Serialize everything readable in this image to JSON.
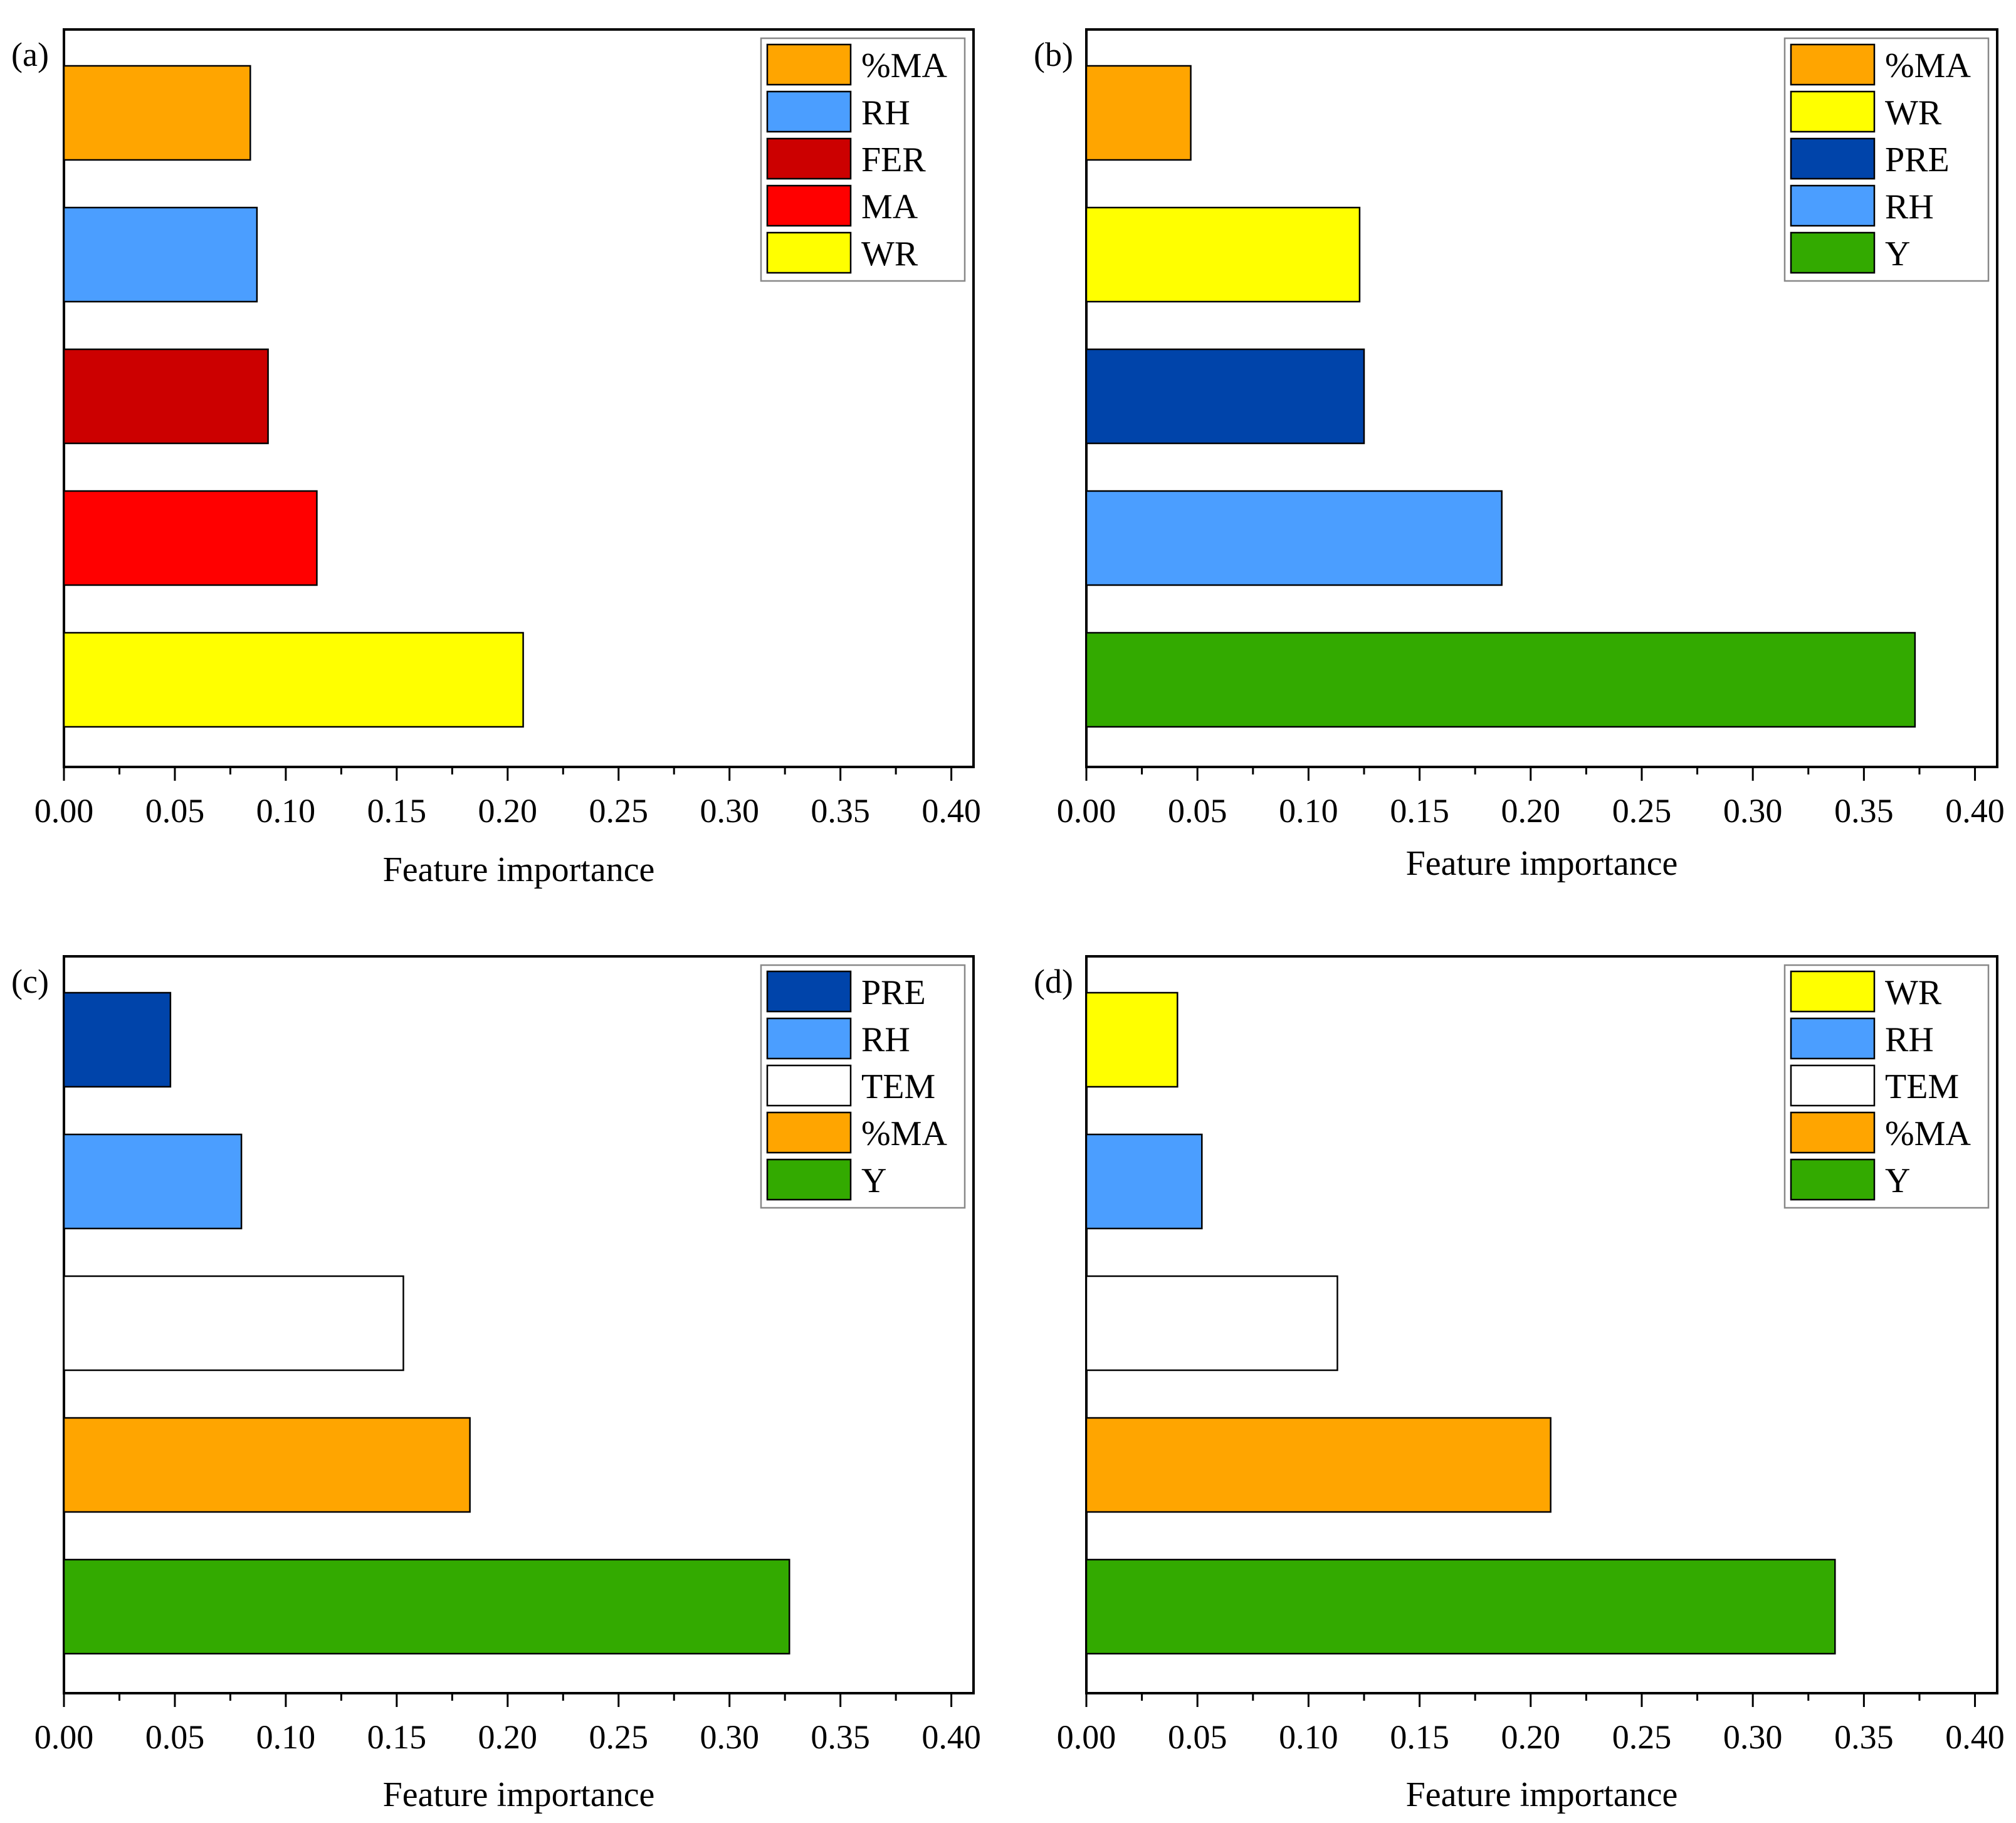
{
  "chart_data": [
    {
      "panel": "(a)",
      "type": "bar",
      "orientation": "horizontal",
      "xlabel": "Feature importance",
      "xlim": [
        0,
        0.41
      ],
      "xticks": [
        "0.00",
        "0.05",
        "0.10",
        "0.15",
        "0.20",
        "0.25",
        "0.30",
        "0.35",
        "0.40"
      ],
      "bars": [
        {
          "name": "%MA",
          "value": 0.084,
          "color": "#FFA500"
        },
        {
          "name": "RH",
          "value": 0.087,
          "color": "#4B9EFF"
        },
        {
          "name": "FER",
          "value": 0.092,
          "color": "#CC0000"
        },
        {
          "name": "MA",
          "value": 0.114,
          "color": "#FF0000"
        },
        {
          "name": "WR",
          "value": 0.207,
          "color": "#FFFF00"
        }
      ],
      "legend": [
        "%MA",
        "RH",
        "FER",
        "MA",
        "WR"
      ],
      "legend_position": "top-right"
    },
    {
      "panel": "(b)",
      "type": "bar",
      "orientation": "horizontal",
      "xlabel": "Feature importance",
      "xlim": [
        0,
        0.41
      ],
      "xticks": [
        "0.00",
        "0.05",
        "0.10",
        "0.15",
        "0.20",
        "0.25",
        "0.30",
        "0.35",
        "0.40"
      ],
      "bars": [
        {
          "name": "%MA",
          "value": 0.047,
          "color": "#FFA500"
        },
        {
          "name": "WR",
          "value": 0.123,
          "color": "#FFFF00"
        },
        {
          "name": "PRE",
          "value": 0.125,
          "color": "#0044AA"
        },
        {
          "name": "RH",
          "value": 0.187,
          "color": "#4B9EFF"
        },
        {
          "name": "Y",
          "value": 0.373,
          "color": "#33AA00"
        }
      ],
      "legend": [
        "%MA",
        "WR",
        "PRE",
        "RH",
        "Y"
      ],
      "legend_position": "top-right"
    },
    {
      "panel": "(c)",
      "type": "bar",
      "orientation": "horizontal",
      "xlabel": "Feature importance",
      "xlim": [
        0,
        0.41
      ],
      "xticks": [
        "0.00",
        "0.05",
        "0.10",
        "0.15",
        "0.20",
        "0.25",
        "0.30",
        "0.35",
        "0.40"
      ],
      "bars": [
        {
          "name": "PRE",
          "value": 0.048,
          "color": "#0044AA"
        },
        {
          "name": "RH",
          "value": 0.08,
          "color": "#4B9EFF"
        },
        {
          "name": "TEM",
          "value": 0.153,
          "color": "#FFFFFF"
        },
        {
          "name": "%MA",
          "value": 0.183,
          "color": "#FFA500"
        },
        {
          "name": "Y",
          "value": 0.327,
          "color": "#33AA00"
        }
      ],
      "legend": [
        "PRE",
        "RH",
        "TEM",
        "%MA",
        "Y"
      ],
      "legend_position": "top-right"
    },
    {
      "panel": "(d)",
      "type": "bar",
      "orientation": "horizontal",
      "xlabel": "Feature importance",
      "xlim": [
        0,
        0.41
      ],
      "xticks": [
        "0.00",
        "0.05",
        "0.10",
        "0.15",
        "0.20",
        "0.25",
        "0.30",
        "0.35",
        "0.40"
      ],
      "bars": [
        {
          "name": "WR",
          "value": 0.041,
          "color": "#FFFF00"
        },
        {
          "name": "RH",
          "value": 0.052,
          "color": "#4B9EFF"
        },
        {
          "name": "TEM",
          "value": 0.113,
          "color": "#FFFFFF"
        },
        {
          "name": "%MA",
          "value": 0.209,
          "color": "#FFA500"
        },
        {
          "name": "Y",
          "value": 0.337,
          "color": "#33AA00"
        }
      ],
      "legend": [
        "WR",
        "RH",
        "TEM",
        "%MA",
        "Y"
      ],
      "legend_position": "top-right"
    }
  ]
}
